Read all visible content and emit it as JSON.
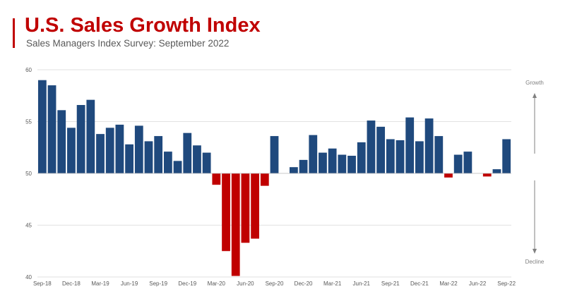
{
  "header": {
    "title": "U.S. Sales Growth Index",
    "subtitle": "Sales Managers Index Survey: September 2022"
  },
  "colors": {
    "title": "#c00000",
    "positive": "#1f497d",
    "negative": "#c00000",
    "grid": "#d9d9d9",
    "arrow": "#808080"
  },
  "chart_data": {
    "type": "bar",
    "title": "U.S. Sales Growth Index",
    "subtitle": "Sales Managers Index Survey: September 2022",
    "baseline": 50,
    "ylim": [
      40,
      60
    ],
    "yticks": [
      40,
      45,
      50,
      55,
      60
    ],
    "grid": true,
    "legend": "none",
    "side_labels": {
      "top": "Growth",
      "bottom": "Decline"
    },
    "categories": [
      "Sep-18",
      "Oct-18",
      "Nov-18",
      "Dec-18",
      "Jan-19",
      "Feb-19",
      "Mar-19",
      "Apr-19",
      "May-19",
      "Jun-19",
      "Jul-19",
      "Aug-19",
      "Sep-19",
      "Oct-19",
      "Nov-19",
      "Dec-19",
      "Jan-20",
      "Feb-20",
      "Mar-20",
      "Apr-20",
      "May-20",
      "Jun-20",
      "Jul-20",
      "Aug-20",
      "Sep-20",
      "Oct-20",
      "Nov-20",
      "Dec-20",
      "Jan-21",
      "Feb-21",
      "Mar-21",
      "Apr-21",
      "May-21",
      "Jun-21",
      "Jul-21",
      "Aug-21",
      "Sep-21",
      "Oct-21",
      "Nov-21",
      "Dec-21",
      "Jan-22",
      "Feb-22",
      "Mar-22",
      "Apr-22",
      "May-22",
      "Jun-22",
      "Jul-22",
      "Aug-22",
      "Sep-22"
    ],
    "values": [
      59.0,
      58.5,
      56.1,
      54.4,
      56.6,
      57.1,
      53.8,
      54.4,
      54.7,
      52.8,
      54.6,
      53.1,
      53.6,
      52.1,
      51.2,
      53.9,
      52.7,
      52.0,
      48.9,
      42.5,
      40.1,
      43.3,
      43.7,
      48.8,
      53.6,
      50.0,
      50.6,
      51.3,
      53.7,
      52.0,
      52.4,
      51.8,
      51.7,
      53.0,
      55.1,
      54.5,
      53.3,
      53.2,
      55.4,
      53.1,
      55.3,
      53.6,
      49.6,
      51.8,
      52.1,
      50.0,
      49.7,
      50.4,
      53.3
    ],
    "tick_labels": [
      {
        "index": 0,
        "label": "Sep-18"
      },
      {
        "index": 3,
        "label": "Dec-18"
      },
      {
        "index": 6,
        "label": "Mar-19"
      },
      {
        "index": 9,
        "label": "Jun-19"
      },
      {
        "index": 12,
        "label": "Sep-19"
      },
      {
        "index": 15,
        "label": "Dec-19"
      },
      {
        "index": 18,
        "label": "Mar-20"
      },
      {
        "index": 21,
        "label": "Jun-20"
      },
      {
        "index": 24,
        "label": "Sep-20"
      },
      {
        "index": 27,
        "label": "Dec-20"
      },
      {
        "index": 30,
        "label": "Mar-21"
      },
      {
        "index": 33,
        "label": "Jun-21"
      },
      {
        "index": 36,
        "label": "Sep-21"
      },
      {
        "index": 39,
        "label": "Dec-21"
      },
      {
        "index": 42,
        "label": "Mar-22"
      },
      {
        "index": 45,
        "label": "Jun-22"
      },
      {
        "index": 48,
        "label": "Sep-22"
      }
    ]
  }
}
